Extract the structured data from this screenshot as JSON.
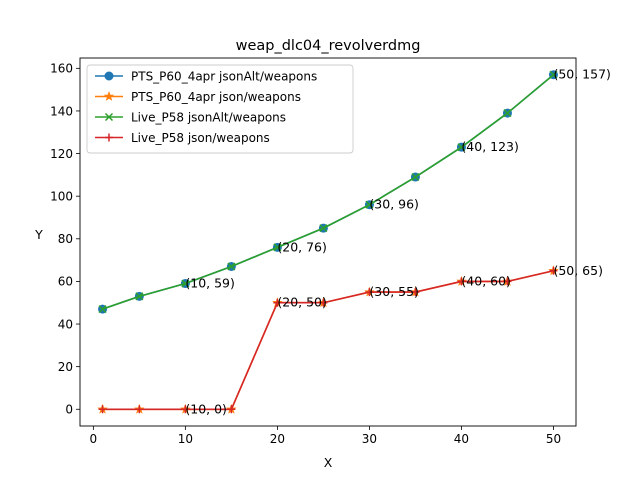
{
  "chart_data": {
    "type": "line",
    "title": "weap_dlc04_revolverdmg",
    "xlabel": "X",
    "ylabel": "Y",
    "xlim": [
      -1.45,
      52.45
    ],
    "ylim": [
      -7.85,
      164.85
    ],
    "xticks": [
      0,
      10,
      20,
      30,
      40,
      50
    ],
    "yticks": [
      0,
      20,
      40,
      60,
      80,
      100,
      120,
      140,
      160
    ],
    "grid": false,
    "legend_position": "upper-left",
    "series": [
      {
        "name": "PTS_P60_4apr jsonAlt/weapons",
        "color": "#1f77b4",
        "marker": "circle",
        "x": [
          1,
          5,
          10,
          15,
          20,
          25,
          30,
          35,
          40,
          45,
          50
        ],
        "y": [
          47,
          53,
          59,
          67,
          76,
          85,
          96,
          109,
          123,
          139,
          157
        ]
      },
      {
        "name": "PTS_P60_4apr json/weapons",
        "color": "#ff7f0e",
        "marker": "star",
        "x": [
          1,
          5,
          10,
          15,
          20,
          25,
          30,
          35,
          40,
          45,
          50
        ],
        "y": [
          0,
          0,
          0,
          0,
          50,
          50,
          55,
          55,
          60,
          60,
          65
        ]
      },
      {
        "name": "Live_P58 jsonAlt/weapons",
        "color": "#2ca02c",
        "marker": "x",
        "x": [
          1,
          5,
          10,
          15,
          20,
          25,
          30,
          35,
          40,
          45,
          50
        ],
        "y": [
          47,
          53,
          59,
          67,
          76,
          85,
          96,
          109,
          123,
          139,
          157
        ]
      },
      {
        "name": "Live_P58 json/weapons",
        "color": "#d62728",
        "marker": "plus",
        "x": [
          1,
          5,
          10,
          15,
          20,
          25,
          30,
          35,
          40,
          45,
          50
        ],
        "y": [
          0,
          0,
          0,
          0,
          50,
          50,
          55,
          55,
          60,
          60,
          65
        ]
      }
    ],
    "annotations": [
      {
        "x": 10,
        "y": 59,
        "text": "(10, 59)"
      },
      {
        "x": 20,
        "y": 76,
        "text": "(20, 76)"
      },
      {
        "x": 30,
        "y": 96,
        "text": "(30, 96)"
      },
      {
        "x": 40,
        "y": 123,
        "text": "(40, 123)"
      },
      {
        "x": 50,
        "y": 157,
        "text": "(50, 157)"
      },
      {
        "x": 10,
        "y": 0,
        "text": "(10, 0)"
      },
      {
        "x": 20,
        "y": 50,
        "text": "(20, 50)"
      },
      {
        "x": 30,
        "y": 55,
        "text": "(30, 55)"
      },
      {
        "x": 40,
        "y": 60,
        "text": "(40, 60)"
      },
      {
        "x": 50,
        "y": 65,
        "text": "(50, 65)"
      }
    ]
  }
}
